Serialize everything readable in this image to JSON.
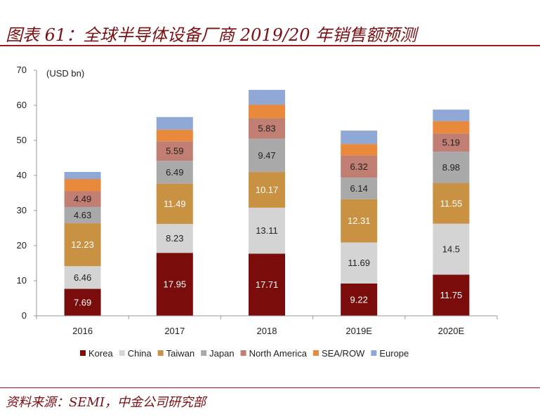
{
  "header": {
    "title": "图表 61：全球半导体设备厂商 2019/20 年销售额预测"
  },
  "footer": {
    "source": "资料来源：SEMI，中金公司研究部"
  },
  "chart_data": {
    "type": "stacked-bar",
    "unit_label": "(USD bn)",
    "categories": [
      "2016",
      "2017",
      "2018",
      "2019E",
      "2020E"
    ],
    "ylim": [
      0,
      70
    ],
    "yticks": [
      0,
      10,
      20,
      30,
      40,
      50,
      60,
      70
    ],
    "legend_position": "bottom",
    "series": [
      {
        "name": "Korea",
        "color": "#7a0c0c",
        "label_color": "#ffffff",
        "values": [
          7.69,
          17.95,
          17.71,
          9.22,
          11.75
        ]
      },
      {
        "name": "China",
        "color": "#d4d4d4",
        "label_color": "#222222",
        "values": [
          6.46,
          8.23,
          13.11,
          11.69,
          14.5
        ]
      },
      {
        "name": "Taiwan",
        "color": "#c99243",
        "label_color": "#ffffff",
        "values": [
          12.23,
          11.49,
          10.17,
          12.31,
          11.55
        ]
      },
      {
        "name": "Japan",
        "color": "#a9a9a9",
        "label_color": "#222222",
        "values": [
          4.63,
          6.49,
          9.47,
          6.14,
          8.98
        ]
      },
      {
        "name": "North America",
        "color": "#c07f72",
        "label_color": "#222222",
        "values": [
          4.49,
          5.59,
          5.83,
          6.32,
          5.19
        ]
      },
      {
        "name": "SEA/ROW",
        "color": "#e8893c",
        "label_color": "#222222",
        "values": [
          3.5,
          3.3,
          3.9,
          3.3,
          3.5
        ]
      },
      {
        "name": "Europe",
        "color": "#8fa8d6",
        "label_color": "#222222",
        "values": [
          2.0,
          3.6,
          4.2,
          3.8,
          3.3
        ]
      }
    ],
    "shown_labels": {
      "Korea": [
        "7.69",
        "17.95",
        "17.71",
        "9.22",
        "11.75"
      ],
      "China": [
        "6.46",
        "8.23",
        "13.11",
        "11.69",
        "14.5"
      ],
      "Taiwan": [
        "12.23",
        "11.49",
        "10.17",
        "12.31",
        "11.55"
      ],
      "Japan": [
        "4.63",
        "6.49",
        "9.47",
        "6.14",
        "8.98"
      ],
      "North America": [
        "4.49",
        "5.59",
        "5.83",
        "6.32",
        "5.19"
      ]
    }
  }
}
